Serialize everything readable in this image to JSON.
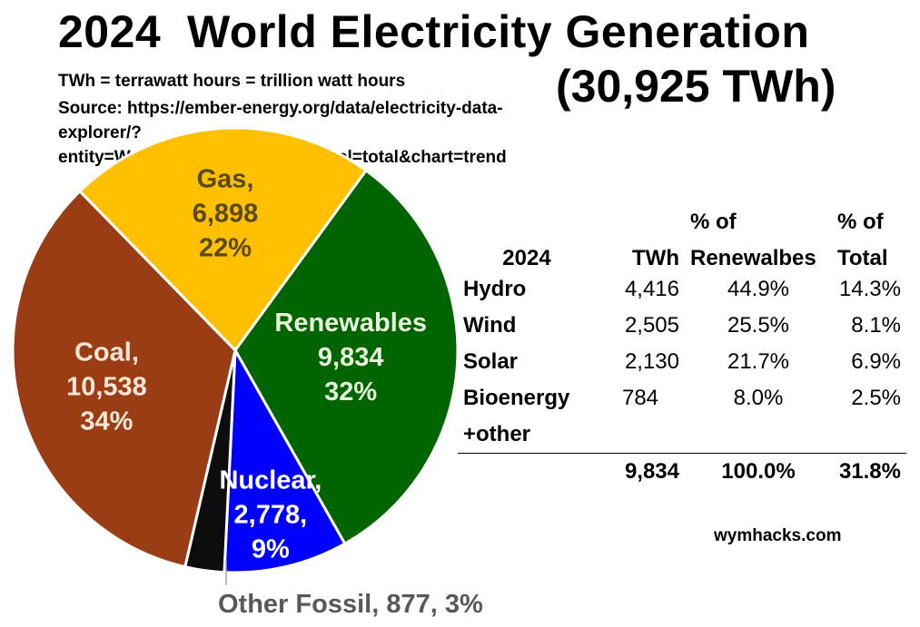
{
  "header": {
    "title": "2024  World Electricity Generation",
    "total": "(30,925 TWh)",
    "units_note": "TWh = terrawatt hours = trillion watt hours",
    "source_line1": "Source: https://ember-energy.org/data/electricity-data-",
    "source_line2": "explorer/?entity=World&data=generation&fuel=total&chart=trend"
  },
  "chart_data": {
    "type": "pie",
    "title": "2024  World Electricity Generation",
    "total_twh": 30925,
    "slices": [
      {
        "name": "Renewables",
        "value": 9834,
        "percent": 32,
        "color": "#006400",
        "label_color": "#e8f3dc",
        "lines": [
          "Renewables",
          "9,834",
          "32%"
        ]
      },
      {
        "name": "Nuclear",
        "value": 2778,
        "percent": 9,
        "color": "#0000ff",
        "label_color": "#ffffff",
        "lines": [
          "Nuclear,",
          "2,778,",
          "9%"
        ]
      },
      {
        "name": "Other Fossil",
        "value": 877,
        "percent": 3,
        "color": "#0d0d0d",
        "label_color": "#595959",
        "lines": []
      },
      {
        "name": "Coal",
        "value": 10538,
        "percent": 34,
        "color": "#9a3c14",
        "label_color": "#fbe5d6",
        "lines": [
          "Coal,",
          "10,538",
          "34%"
        ]
      },
      {
        "name": "Gas",
        "value": 6898,
        "percent": 22,
        "color": "#ffc000",
        "label_color": "#5a4a1a",
        "lines": [
          "Gas,",
          "6,898",
          "22%"
        ]
      }
    ],
    "outside_label": "Other Fossil, 877, 3%"
  },
  "table": {
    "headers_top": [
      "",
      "",
      "% of",
      "% of"
    ],
    "headers": [
      "2024",
      "TWh",
      "Renewalbes",
      "Total"
    ],
    "rows": [
      [
        "Hydro",
        "4,416",
        "44.9%",
        "14.3%"
      ],
      [
        "Wind",
        "2,505",
        "25.5%",
        "8.1%"
      ],
      [
        "Solar",
        "2,130",
        "21.7%",
        "6.9%"
      ],
      [
        "Bioenergy",
        "784",
        "8.0%",
        "2.5%"
      ],
      [
        "+other",
        "",
        "",
        ""
      ]
    ],
    "total_row": [
      "",
      "9,834",
      "100.0%",
      "31.8%"
    ]
  },
  "watermark": "wymhacks.com"
}
